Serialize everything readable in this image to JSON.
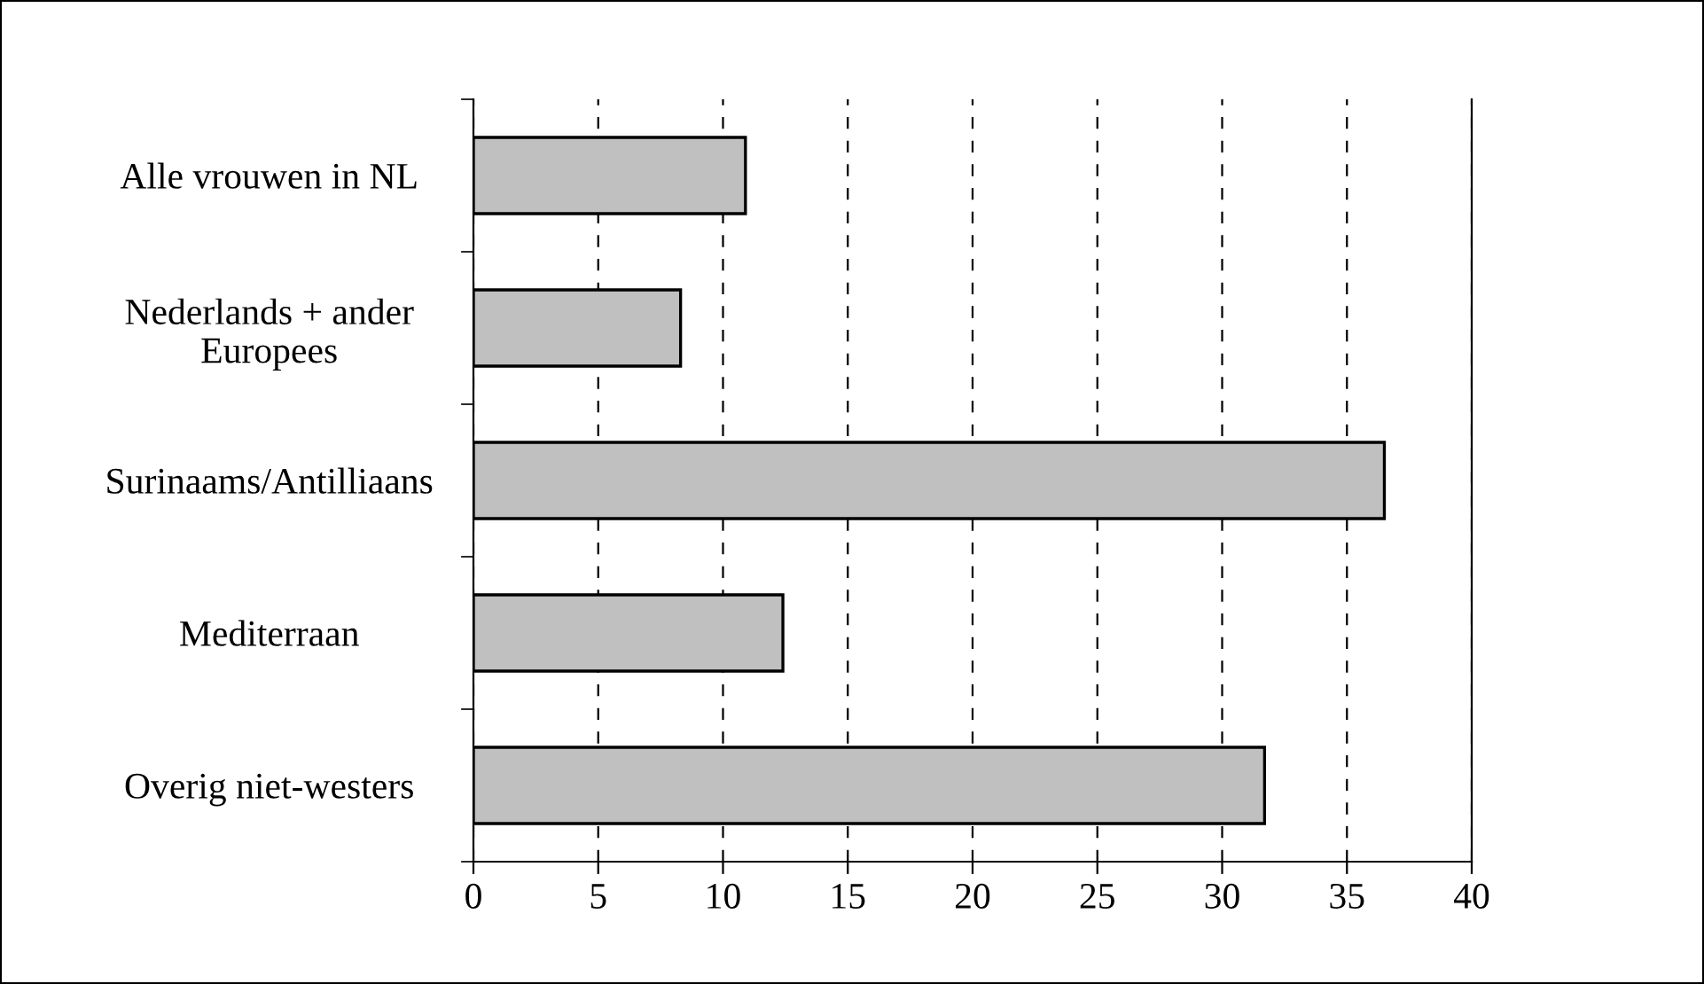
{
  "chart_data": {
    "type": "bar",
    "orientation": "horizontal",
    "categories": [
      "Alle vrouwen in NL",
      "Nederlands + ander\nEuropees",
      "Surinaams/Antilliaans",
      "Mediterraan",
      "Overig niet-westers"
    ],
    "values": [
      10.9,
      8.3,
      36.5,
      12.4,
      31.7
    ],
    "color": "#c0c0c0",
    "xlim": [
      0,
      40
    ],
    "xticks": [
      0,
      5,
      10,
      15,
      20,
      25,
      30,
      35,
      40
    ],
    "grid": "x"
  }
}
